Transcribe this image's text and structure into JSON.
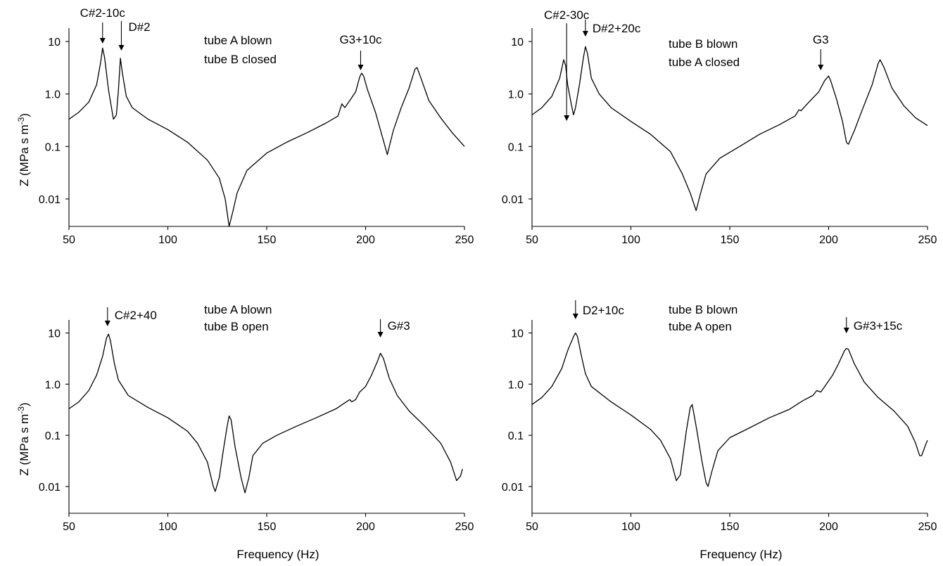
{
  "chart_data": [
    {
      "type": "line",
      "title": "",
      "annotation_lines": [
        "tube A blown",
        "tube B closed"
      ],
      "xlabel": "",
      "ylabel": "Z  (MPa s m",
      "ylabel_sup": "-3",
      "ylabel_close": ")",
      "y_scale": "log",
      "xlim": [
        50,
        250
      ],
      "ylim": [
        0.003,
        18
      ],
      "x_ticks": [
        50,
        100,
        150,
        200,
        250
      ],
      "y_ticks": [
        0.01,
        0.1,
        1.0,
        10
      ],
      "y_tick_labels": [
        "0.01",
        "0.1",
        "1.0",
        "10"
      ],
      "series": [
        {
          "points": [
            [
              50,
              0.33
            ],
            [
              55,
              0.45
            ],
            [
              60,
              0.7
            ],
            [
              64,
              1.5
            ],
            [
              66,
              4.0
            ],
            [
              67,
              7.5
            ],
            [
              68,
              5.0
            ],
            [
              70,
              1.2
            ],
            [
              71.5,
              0.55
            ],
            [
              72.5,
              0.33
            ],
            [
              74,
              0.4
            ],
            [
              75,
              1.2
            ],
            [
              76,
              4.8
            ],
            [
              77,
              2.5
            ],
            [
              79,
              0.9
            ],
            [
              82,
              0.55
            ],
            [
              90,
              0.33
            ],
            [
              100,
              0.21
            ],
            [
              110,
              0.12
            ],
            [
              120,
              0.055
            ],
            [
              126,
              0.025
            ],
            [
              129,
              0.01
            ],
            [
              131,
              0.003
            ],
            [
              133,
              0.006
            ],
            [
              135,
              0.013
            ],
            [
              140,
              0.035
            ],
            [
              150,
              0.075
            ],
            [
              160,
              0.12
            ],
            [
              170,
              0.18
            ],
            [
              180,
              0.28
            ],
            [
              186,
              0.38
            ],
            [
              188,
              0.65
            ],
            [
              189.5,
              0.55
            ],
            [
              192,
              0.75
            ],
            [
              195,
              1.1
            ],
            [
              197,
              2.1
            ],
            [
              198,
              2.5
            ],
            [
              199,
              2.2
            ],
            [
              201,
              1.2
            ],
            [
              205,
              0.45
            ],
            [
              209,
              0.13
            ],
            [
              211,
              0.07
            ],
            [
              214,
              0.2
            ],
            [
              218,
              0.55
            ],
            [
              222,
              1.3
            ],
            [
              225,
              3.0
            ],
            [
              226,
              3.2
            ],
            [
              228,
              2.0
            ],
            [
              232,
              0.75
            ],
            [
              238,
              0.35
            ],
            [
              244,
              0.18
            ],
            [
              250,
              0.1
            ]
          ]
        }
      ],
      "arrows": [
        {
          "label": "C#2-10c",
          "x": 67
        },
        {
          "label": "D#2",
          "x": 76.5
        },
        {
          "label": "G3+10c",
          "x": 197.5
        }
      ]
    },
    {
      "type": "line",
      "title": "",
      "annotation_lines": [
        "tube B blown",
        "tube A closed"
      ],
      "xlabel": "",
      "ylabel": "",
      "ylabel_sup": "",
      "ylabel_close": "",
      "y_scale": "log",
      "xlim": [
        50,
        250
      ],
      "ylim": [
        0.003,
        18
      ],
      "x_ticks": [
        50,
        100,
        150,
        200,
        250
      ],
      "y_ticks": [
        0.01,
        0.1,
        1.0,
        10
      ],
      "y_tick_labels": [
        "0.01",
        "0.1",
        "1.0",
        "10"
      ],
      "series": [
        {
          "points": [
            [
              50,
              0.4
            ],
            [
              55,
              0.55
            ],
            [
              60,
              0.9
            ],
            [
              64,
              2.0
            ],
            [
              66,
              4.5
            ],
            [
              67,
              3.5
            ],
            [
              68,
              1.5
            ],
            [
              70,
              0.6
            ],
            [
              71,
              0.4
            ],
            [
              72,
              0.55
            ],
            [
              74,
              1.5
            ],
            [
              76,
              5.0
            ],
            [
              77,
              8.0
            ],
            [
              78,
              6.0
            ],
            [
              80,
              2.0
            ],
            [
              84,
              1.0
            ],
            [
              90,
              0.55
            ],
            [
              100,
              0.3
            ],
            [
              110,
              0.17
            ],
            [
              120,
              0.08
            ],
            [
              126,
              0.03
            ],
            [
              130,
              0.013
            ],
            [
              133,
              0.006
            ],
            [
              135,
              0.012
            ],
            [
              138,
              0.03
            ],
            [
              145,
              0.06
            ],
            [
              155,
              0.1
            ],
            [
              165,
              0.17
            ],
            [
              175,
              0.26
            ],
            [
              183,
              0.38
            ],
            [
              185,
              0.5
            ],
            [
              186,
              0.48
            ],
            [
              190,
              0.7
            ],
            [
              195,
              1.1
            ],
            [
              198,
              1.8
            ],
            [
              200,
              2.2
            ],
            [
              201,
              1.8
            ],
            [
              204,
              0.8
            ],
            [
              207,
              0.3
            ],
            [
              209,
              0.12
            ],
            [
              210,
              0.11
            ],
            [
              213,
              0.2
            ],
            [
              217,
              0.5
            ],
            [
              222,
              1.5
            ],
            [
              225,
              3.8
            ],
            [
              226,
              4.5
            ],
            [
              228,
              3.2
            ],
            [
              232,
              1.3
            ],
            [
              238,
              0.6
            ],
            [
              244,
              0.35
            ],
            [
              250,
              0.25
            ]
          ]
        }
      ],
      "arrows": [
        {
          "label": "C#2-30c",
          "x": 67.5
        },
        {
          "label": "D#2+20c",
          "x": 77
        },
        {
          "label": "G3",
          "x": 196
        }
      ]
    },
    {
      "type": "line",
      "title": "",
      "annotation_lines": [
        "tube A blown",
        "tube B open"
      ],
      "xlabel": "Frequency  (Hz)",
      "ylabel": "Z  (MPa s m",
      "ylabel_sup": "-3",
      "ylabel_close": ")",
      "y_scale": "log",
      "xlim": [
        50,
        250
      ],
      "ylim": [
        0.003,
        18
      ],
      "x_ticks": [
        50,
        100,
        150,
        200,
        250
      ],
      "y_ticks": [
        0.01,
        0.1,
        1.0,
        10
      ],
      "y_tick_labels": [
        "0.01",
        "0.1",
        "1.0",
        "10"
      ],
      "series": [
        {
          "points": [
            [
              50,
              0.33
            ],
            [
              55,
              0.45
            ],
            [
              60,
              0.75
            ],
            [
              64,
              1.5
            ],
            [
              67,
              3.5
            ],
            [
              69,
              8.0
            ],
            [
              70,
              9.5
            ],
            [
              71,
              7.0
            ],
            [
              73,
              2.5
            ],
            [
              75,
              1.2
            ],
            [
              80,
              0.6
            ],
            [
              90,
              0.35
            ],
            [
              100,
              0.22
            ],
            [
              110,
              0.12
            ],
            [
              115,
              0.07
            ],
            [
              120,
              0.03
            ],
            [
              123,
              0.01
            ],
            [
              124,
              0.008
            ],
            [
              126,
              0.015
            ],
            [
              128,
              0.05
            ],
            [
              130,
              0.15
            ],
            [
              131,
              0.24
            ],
            [
              132,
              0.2
            ],
            [
              134,
              0.06
            ],
            [
              137,
              0.015
            ],
            [
              139,
              0.0075
            ],
            [
              141,
              0.015
            ],
            [
              143,
              0.04
            ],
            [
              148,
              0.07
            ],
            [
              155,
              0.1
            ],
            [
              165,
              0.15
            ],
            [
              175,
              0.22
            ],
            [
              185,
              0.33
            ],
            [
              192,
              0.5
            ],
            [
              193,
              0.45
            ],
            [
              195,
              0.5
            ],
            [
              197,
              0.7
            ],
            [
              200,
              0.9
            ],
            [
              203,
              1.5
            ],
            [
              206,
              2.8
            ],
            [
              207.5,
              4.0
            ],
            [
              209,
              3.2
            ],
            [
              212,
              1.3
            ],
            [
              216,
              0.6
            ],
            [
              222,
              0.3
            ],
            [
              230,
              0.15
            ],
            [
              238,
              0.07
            ],
            [
              243,
              0.03
            ],
            [
              246,
              0.013
            ],
            [
              248,
              0.016
            ],
            [
              249,
              0.022
            ]
          ]
        }
      ],
      "arrows": [
        {
          "label": "C#2+40",
          "x": 69.5
        },
        {
          "label": "G#3",
          "x": 207.5
        }
      ]
    },
    {
      "type": "line",
      "title": "",
      "annotation_lines": [
        "tube B blown",
        "tube A open"
      ],
      "xlabel": "Frequency  (Hz)",
      "ylabel": "",
      "ylabel_sup": "",
      "ylabel_close": "",
      "y_scale": "log",
      "xlim": [
        50,
        250
      ],
      "ylim": [
        0.003,
        18
      ],
      "x_ticks": [
        50,
        100,
        150,
        200,
        250
      ],
      "y_ticks": [
        0.01,
        0.1,
        1.0,
        10
      ],
      "y_tick_labels": [
        "0.01",
        "0.1",
        "1.0",
        "10"
      ],
      "series": [
        {
          "points": [
            [
              50,
              0.4
            ],
            [
              55,
              0.55
            ],
            [
              60,
              0.9
            ],
            [
              65,
              2.0
            ],
            [
              68,
              4.5
            ],
            [
              71,
              8.5
            ],
            [
              72,
              10
            ],
            [
              73,
              8.5
            ],
            [
              75,
              3.5
            ],
            [
              77,
              1.6
            ],
            [
              80,
              0.9
            ],
            [
              90,
              0.45
            ],
            [
              100,
              0.25
            ],
            [
              110,
              0.13
            ],
            [
              115,
              0.08
            ],
            [
              120,
              0.035
            ],
            [
              122,
              0.018
            ],
            [
              123,
              0.013
            ],
            [
              125,
              0.017
            ],
            [
              128,
              0.12
            ],
            [
              130,
              0.35
            ],
            [
              131,
              0.4
            ],
            [
              133,
              0.15
            ],
            [
              136,
              0.03
            ],
            [
              138,
              0.012
            ],
            [
              139,
              0.01
            ],
            [
              141,
              0.02
            ],
            [
              144,
              0.05
            ],
            [
              150,
              0.09
            ],
            [
              160,
              0.14
            ],
            [
              170,
              0.22
            ],
            [
              180,
              0.32
            ],
            [
              186,
              0.45
            ],
            [
              188,
              0.5
            ],
            [
              192,
              0.6
            ],
            [
              194,
              0.75
            ],
            [
              196,
              0.7
            ],
            [
              198,
              0.9
            ],
            [
              202,
              1.5
            ],
            [
              205,
              2.5
            ],
            [
              208,
              4.5
            ],
            [
              209,
              5.0
            ],
            [
              210,
              4.8
            ],
            [
              213,
              2.5
            ],
            [
              218,
              1.1
            ],
            [
              225,
              0.55
            ],
            [
              233,
              0.3
            ],
            [
              240,
              0.15
            ],
            [
              244,
              0.07
            ],
            [
              246,
              0.04
            ],
            [
              247,
              0.04
            ],
            [
              249,
              0.065
            ],
            [
              250,
              0.08
            ]
          ]
        }
      ],
      "arrows": [
        {
          "label": "D2+10c",
          "x": 72
        },
        {
          "label": "G#3+15c",
          "x": 209
        }
      ]
    }
  ]
}
